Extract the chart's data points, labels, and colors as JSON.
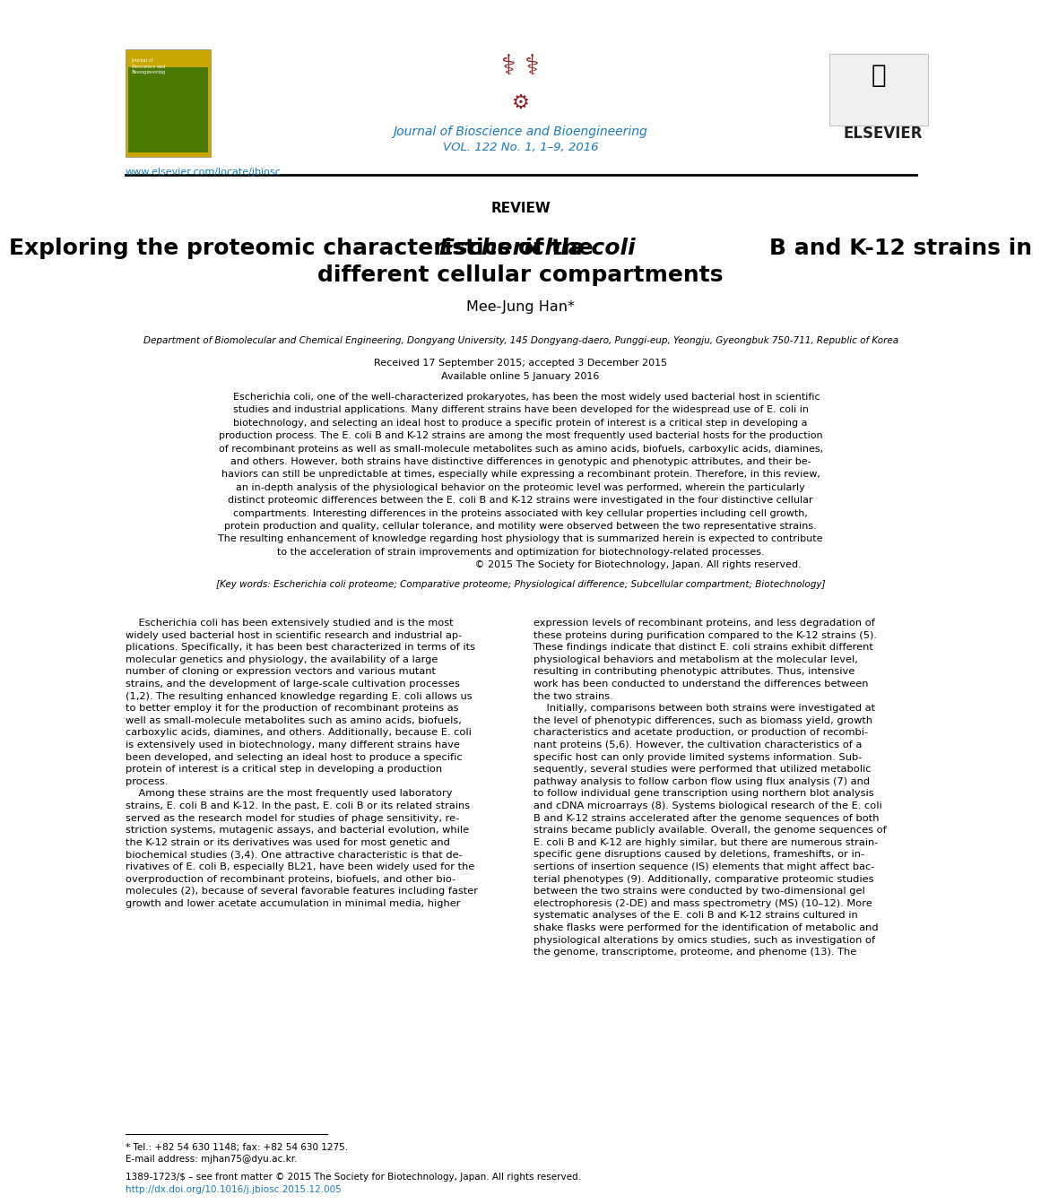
{
  "bg_color": "#ffffff",
  "header_line_color": "#000000",
  "journal_name": "Journal of Bioscience and Bioengineering",
  "journal_vol": "VOL. 122 No. 1, 1–9, 2016",
  "journal_color": "#1a7abf",
  "elsevier_text": "ELSEVIER",
  "website": "www.elsevier.com/locate/jbiosc",
  "website_color": "#1a7abf",
  "section_label": "REVIEW",
  "title_line1": "Exploring the proteomic characteristics of the ",
  "title_italic": "Escherichia coli",
  "title_line1_end": " B and K-12 strains in",
  "title_line2": "different cellular compartments",
  "author": "Mee-Jung Han",
  "affiliation": "Department of Biomolecular and Chemical Engineering, Dongyang University, 145 Dongyang-daero, Punggi-eup, Yeongju, Gyeongbuk 750-711, Republic of Korea",
  "received": "Received 17 September 2015; accepted 3 December 2015",
  "available": "Available online 5 January 2016",
  "abstract_bold_start": "Escherichia coli",
  "abstract_text": ", one of the well-characterized prokaryotes, has been the most widely used bacterial host in scientific studies and industrial applications. Many different strains have been developed for the widespread use of E. coli in biotechnology, and selecting an ideal host to produce a specific protein of interest is a critical step in developing a production process. The E. coli B and K-12 strains are among the most frequently used bacterial hosts for the production of recombinant proteins as well as small-molecule metabolites such as amino acids, biofuels, carboxylic acids, diamines, and others. However, both strains have distinctive differences in genotypic and phenotypic attributes, and their behaviors can still be unpredictable at times, especially while expressing a recombinant protein. Therefore, in this review, an in-depth analysis of the physiological behavior on the proteomic level was performed, wherein the particularly distinct proteomic differences between the E. coli B and K-12 strains were investigated in the four distinctive cellular compartments. Interesting differences in the proteins associated with key cellular properties including cell growth, protein production and quality, cellular tolerance, and motility were observed between the two representative strains. The resulting enhancement of knowledge regarding host physiology that is summarized herein is expected to contribute to the acceleration of strain improvements and optimization for biotechnology-related processes.",
  "copyright": "© 2015 The Society for Biotechnology, Japan. All rights reserved.",
  "keywords": "[Key words: Escherichia coli proteome; Comparative proteome; Physiological difference; Subcellular compartment; Biotechnology]",
  "col1_text": "    Escherichia coli has been extensively studied and is the most widely used bacterial host in scientific research and industrial applications. Specifically, it has been best characterized in terms of its molecular genetics and physiology, the availability of a large number of cloning or expression vectors and various mutant strains, and the development of large-scale cultivation processes (1,2). The resulting enhanced knowledge regarding E. coli allows us to better employ it for the production of recombinant proteins as well as small-molecule metabolites such as amino acids, biofuels, carboxylic acids, diamines, and others. Additionally, because E. coli is extensively used in biotechnology, many different strains have been developed, and selecting an ideal host to produce a specific protein of interest is a critical step in developing a production process.\n    Among these strains are the most frequently used laboratory strains, E. coli B and K-12. In the past, E. coli B or its related strains served as the research model for studies of phage sensitivity, restriction systems, mutagenic assays, and bacterial evolution, while the K-12 strain or its derivatives was used for most genetic and biochemical studies (3,4). One attractive characteristic is that derivatives of E. coli B, especially BL21, have been widely used for the overproduction of recombinant proteins, biofuels, and other biomolecules (2), because of several favorable features including faster growth and lower acetate accumulation in minimal media, higher",
  "col2_text": "expression levels of recombinant proteins, and less degradation of these proteins during purification compared to the K-12 strains (5). These findings indicate that distinct E. coli strains exhibit different physiological behaviors and metabolism at the molecular level, resulting in contributing phenotypic attributes. Thus, intensive work has been conducted to understand the differences between the two strains.\n    Initially, comparisons between both strains were investigated at the level of phenotypic differences, such as biomass yield, growth characteristics and acetate production, or production of recombinant proteins (5,6). However, the cultivation characteristics of a specific host can only provide limited systems information. Subsequently, several studies were performed that utilized metabolic pathway analysis to follow carbon flow using flux analysis (7) and to follow individual gene transcription using northern blot analysis and cDNA microarrays (8). Systems biological research of the E. coli B and K-12 strains accelerated after the genome sequences of both strains became publicly available. Overall, the genome sequences of E. coli B and K-12 are highly similar, but there are numerous strain-specific gene disruptions caused by deletions, frameshifts, or insertions of insertion sequence (IS) elements that might affect bacterial phenotypes (9). Additionally, comparative proteomic studies between the two strains were conducted by two-dimensional gel electrophoresis (2-DE) and mass spectrometry (MS) (10–12). More systematic analyses of the E. coli B and K-12 strains cultured in shake flasks were performed for the identification of metabolic and physiological alterations by omics studies, such as investigation of the genome, transcriptome, proteome, and phenome (13). The",
  "footnote1": "* Tel.: +82 54 630 1148; fax: +82 54 630 1275.",
  "footnote2": "E-mail address: mjhan75@dyu.ac.kr.",
  "footer1": "1389-1723/$ – see front matter © 2015 The Society for Biotechnology, Japan. All rights reserved.",
  "footer2": "http://dx.doi.org/10.1016/j.jbiosc.2015.12.005",
  "footer2_color": "#1a7abf"
}
